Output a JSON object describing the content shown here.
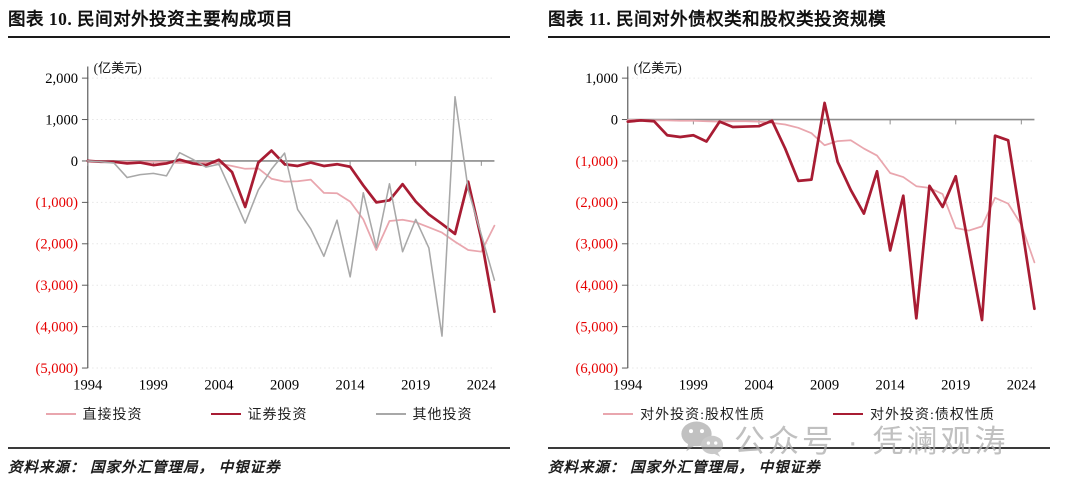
{
  "panels": [
    {
      "title": "图表 10. 民间对外投资主要构成项目",
      "source": "资料来源： 国家外汇管理局， 中银证券"
    },
    {
      "title": "图表 11. 民间对外债权类和股权类投资规模",
      "source": "资料来源： 国家外汇管理局， 中银证券"
    }
  ],
  "watermark": {
    "icon": "wechat-icon",
    "text": "公众号 · 凭澜观涛"
  },
  "colors": {
    "pink": "#e9a6ae",
    "dark_red": "#a81c33",
    "gray": "#a8a8a8",
    "negative_tick": "#e60000",
    "axis": "#8c8c8c"
  },
  "chart_data": [
    {
      "type": "line",
      "title": "图表 10. 民间对外投资主要构成项目",
      "unit_label": "(亿美元)",
      "ylim": [
        -5000,
        2000
      ],
      "ytick_interval": 1000,
      "negative_label_color": "#e60000",
      "grid": "faint-dotted-horizontal",
      "legend_position": "bottom",
      "x": [
        1994,
        1995,
        1996,
        1997,
        1998,
        1999,
        2000,
        2001,
        2002,
        2003,
        2004,
        2005,
        2006,
        2007,
        2008,
        2009,
        2010,
        2011,
        2012,
        2013,
        2014,
        2015,
        2016,
        2017,
        2018,
        2019,
        2020,
        2021,
        2022,
        2023,
        2024,
        2025
      ],
      "xticks": [
        1994,
        1999,
        2004,
        2009,
        2014,
        2019,
        2024
      ],
      "series": [
        {
          "name": "直接投资",
          "color": "#e9a6ae",
          "width": 1.8,
          "values": [
            0,
            -10,
            -20,
            -20,
            -30,
            -20,
            -30,
            -50,
            -40,
            -40,
            -60,
            -120,
            -190,
            -180,
            -430,
            -500,
            -490,
            -450,
            -770,
            -780,
            -980,
            -1410,
            -2150,
            -1450,
            -1420,
            -1480,
            -1600,
            -1730,
            -1950,
            -2150,
            -2190,
            -1560
          ]
        },
        {
          "name": "证券投资",
          "color": "#a81c33",
          "width": 2.8,
          "values": [
            0,
            -20,
            -20,
            -60,
            -40,
            -100,
            -60,
            30,
            -60,
            -100,
            30,
            -270,
            -1110,
            -40,
            250,
            -80,
            -120,
            -40,
            -120,
            -80,
            -140,
            -590,
            -1000,
            -950,
            -560,
            -980,
            -1290,
            -1520,
            -1760,
            -500,
            -1880,
            -3640
          ]
        },
        {
          "name": "其他投资",
          "color": "#a8a8a8",
          "width": 1.6,
          "values": [
            0,
            -20,
            -50,
            -400,
            -330,
            -300,
            -360,
            200,
            40,
            -150,
            -80,
            -780,
            -1500,
            -700,
            -200,
            190,
            -1170,
            -1640,
            -2300,
            -1430,
            -2800,
            -770,
            -2090,
            -550,
            -2190,
            -1410,
            -2100,
            -4230,
            1550,
            -690,
            -1780,
            -2880
          ]
        }
      ]
    },
    {
      "type": "line",
      "title": "图表 11. 民间对外债权类和股权类投资规模",
      "unit_label": "(亿美元)",
      "ylim": [
        -6000,
        1000
      ],
      "ytick_interval": 1000,
      "negative_label_color": "#e60000",
      "grid": "faint-dotted-horizontal",
      "legend_position": "bottom",
      "x": [
        1994,
        1995,
        1996,
        1997,
        1998,
        1999,
        2000,
        2001,
        2002,
        2003,
        2004,
        2005,
        2006,
        2007,
        2008,
        2009,
        2010,
        2011,
        2012,
        2013,
        2014,
        2015,
        2016,
        2017,
        2018,
        2019,
        2020,
        2021,
        2022,
        2023,
        2024,
        2025
      ],
      "xticks": [
        1994,
        1999,
        2004,
        2009,
        2014,
        2019,
        2024
      ],
      "series": [
        {
          "name": "对外投资:股权性质",
          "color": "#e9a6ae",
          "width": 1.8,
          "values": [
            -10,
            -10,
            -20,
            -20,
            -30,
            -30,
            -40,
            -50,
            -40,
            -40,
            -50,
            -80,
            -120,
            -200,
            -330,
            -620,
            -520,
            -500,
            -700,
            -870,
            -1290,
            -1390,
            -1610,
            -1650,
            -1800,
            -2620,
            -2680,
            -2580,
            -1890,
            -2030,
            -2540,
            -3450
          ]
        },
        {
          "name": "对外投资:债权性质",
          "color": "#a81c33",
          "width": 2.8,
          "values": [
            -50,
            -20,
            -40,
            -380,
            -420,
            -380,
            -530,
            -50,
            -180,
            -170,
            -160,
            -30,
            -700,
            -1480,
            -1450,
            400,
            -1020,
            -1700,
            -2270,
            -1250,
            -3160,
            -1840,
            -4800,
            -1600,
            -2110,
            -1370,
            -3100,
            -4840,
            -390,
            -500,
            -2500,
            -4570
          ]
        }
      ]
    }
  ]
}
